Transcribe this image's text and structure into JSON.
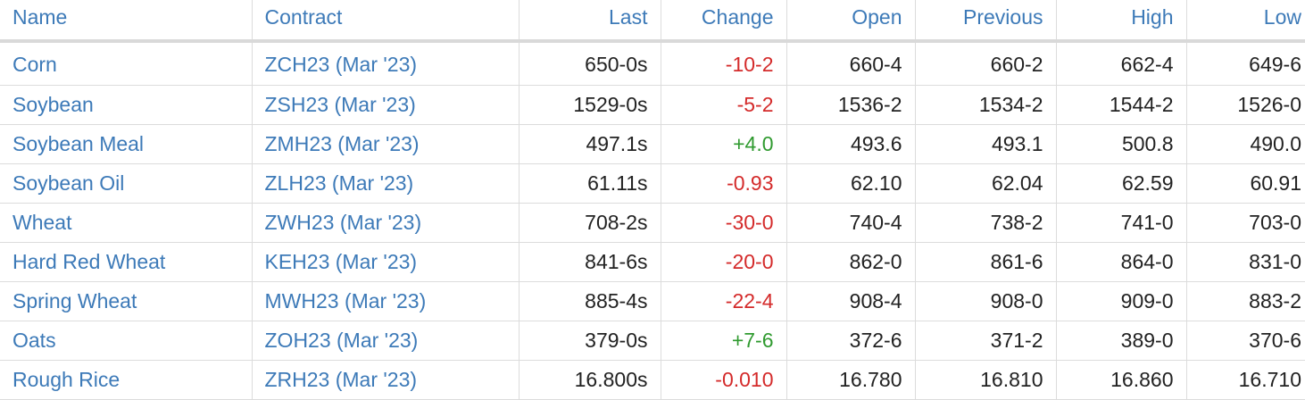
{
  "headers": {
    "name": "Name",
    "contract": "Contract",
    "last": "Last",
    "change": "Change",
    "open": "Open",
    "previous": "Previous",
    "high": "High",
    "low": "Low"
  },
  "colors": {
    "link": "#3d7ab8",
    "negative": "#d42a2a",
    "positive": "#2f9a2f"
  },
  "rows": [
    {
      "name": "Corn",
      "contract": "ZCH23 (Mar '23)",
      "last": "650-0s",
      "change": "-10-2",
      "direction": "down",
      "open": "660-4",
      "previous": "660-2",
      "high": "662-4",
      "low": "649-6"
    },
    {
      "name": "Soybean",
      "contract": "ZSH23 (Mar '23)",
      "last": "1529-0s",
      "change": "-5-2",
      "direction": "down",
      "open": "1536-2",
      "previous": "1534-2",
      "high": "1544-2",
      "low": "1526-0"
    },
    {
      "name": "Soybean Meal",
      "contract": "ZMH23 (Mar '23)",
      "last": "497.1s",
      "change": "+4.0",
      "direction": "up",
      "open": "493.6",
      "previous": "493.1",
      "high": "500.8",
      "low": "490.0"
    },
    {
      "name": "Soybean Oil",
      "contract": "ZLH23 (Mar '23)",
      "last": "61.11s",
      "change": "-0.93",
      "direction": "down",
      "open": "62.10",
      "previous": "62.04",
      "high": "62.59",
      "low": "60.91"
    },
    {
      "name": "Wheat",
      "contract": "ZWH23 (Mar '23)",
      "last": "708-2s",
      "change": "-30-0",
      "direction": "down",
      "open": "740-4",
      "previous": "738-2",
      "high": "741-0",
      "low": "703-0"
    },
    {
      "name": "Hard Red Wheat",
      "contract": "KEH23 (Mar '23)",
      "last": "841-6s",
      "change": "-20-0",
      "direction": "down",
      "open": "862-0",
      "previous": "861-6",
      "high": "864-0",
      "low": "831-0"
    },
    {
      "name": "Spring Wheat",
      "contract": "MWH23 (Mar '23)",
      "last": "885-4s",
      "change": "-22-4",
      "direction": "down",
      "open": "908-4",
      "previous": "908-0",
      "high": "909-0",
      "low": "883-2"
    },
    {
      "name": "Oats",
      "contract": "ZOH23 (Mar '23)",
      "last": "379-0s",
      "change": "+7-6",
      "direction": "up",
      "open": "372-6",
      "previous": "371-2",
      "high": "389-0",
      "low": "370-6"
    },
    {
      "name": "Rough Rice",
      "contract": "ZRH23 (Mar '23)",
      "last": "16.800s",
      "change": "-0.010",
      "direction": "down",
      "open": "16.780",
      "previous": "16.810",
      "high": "16.860",
      "low": "16.710"
    }
  ]
}
